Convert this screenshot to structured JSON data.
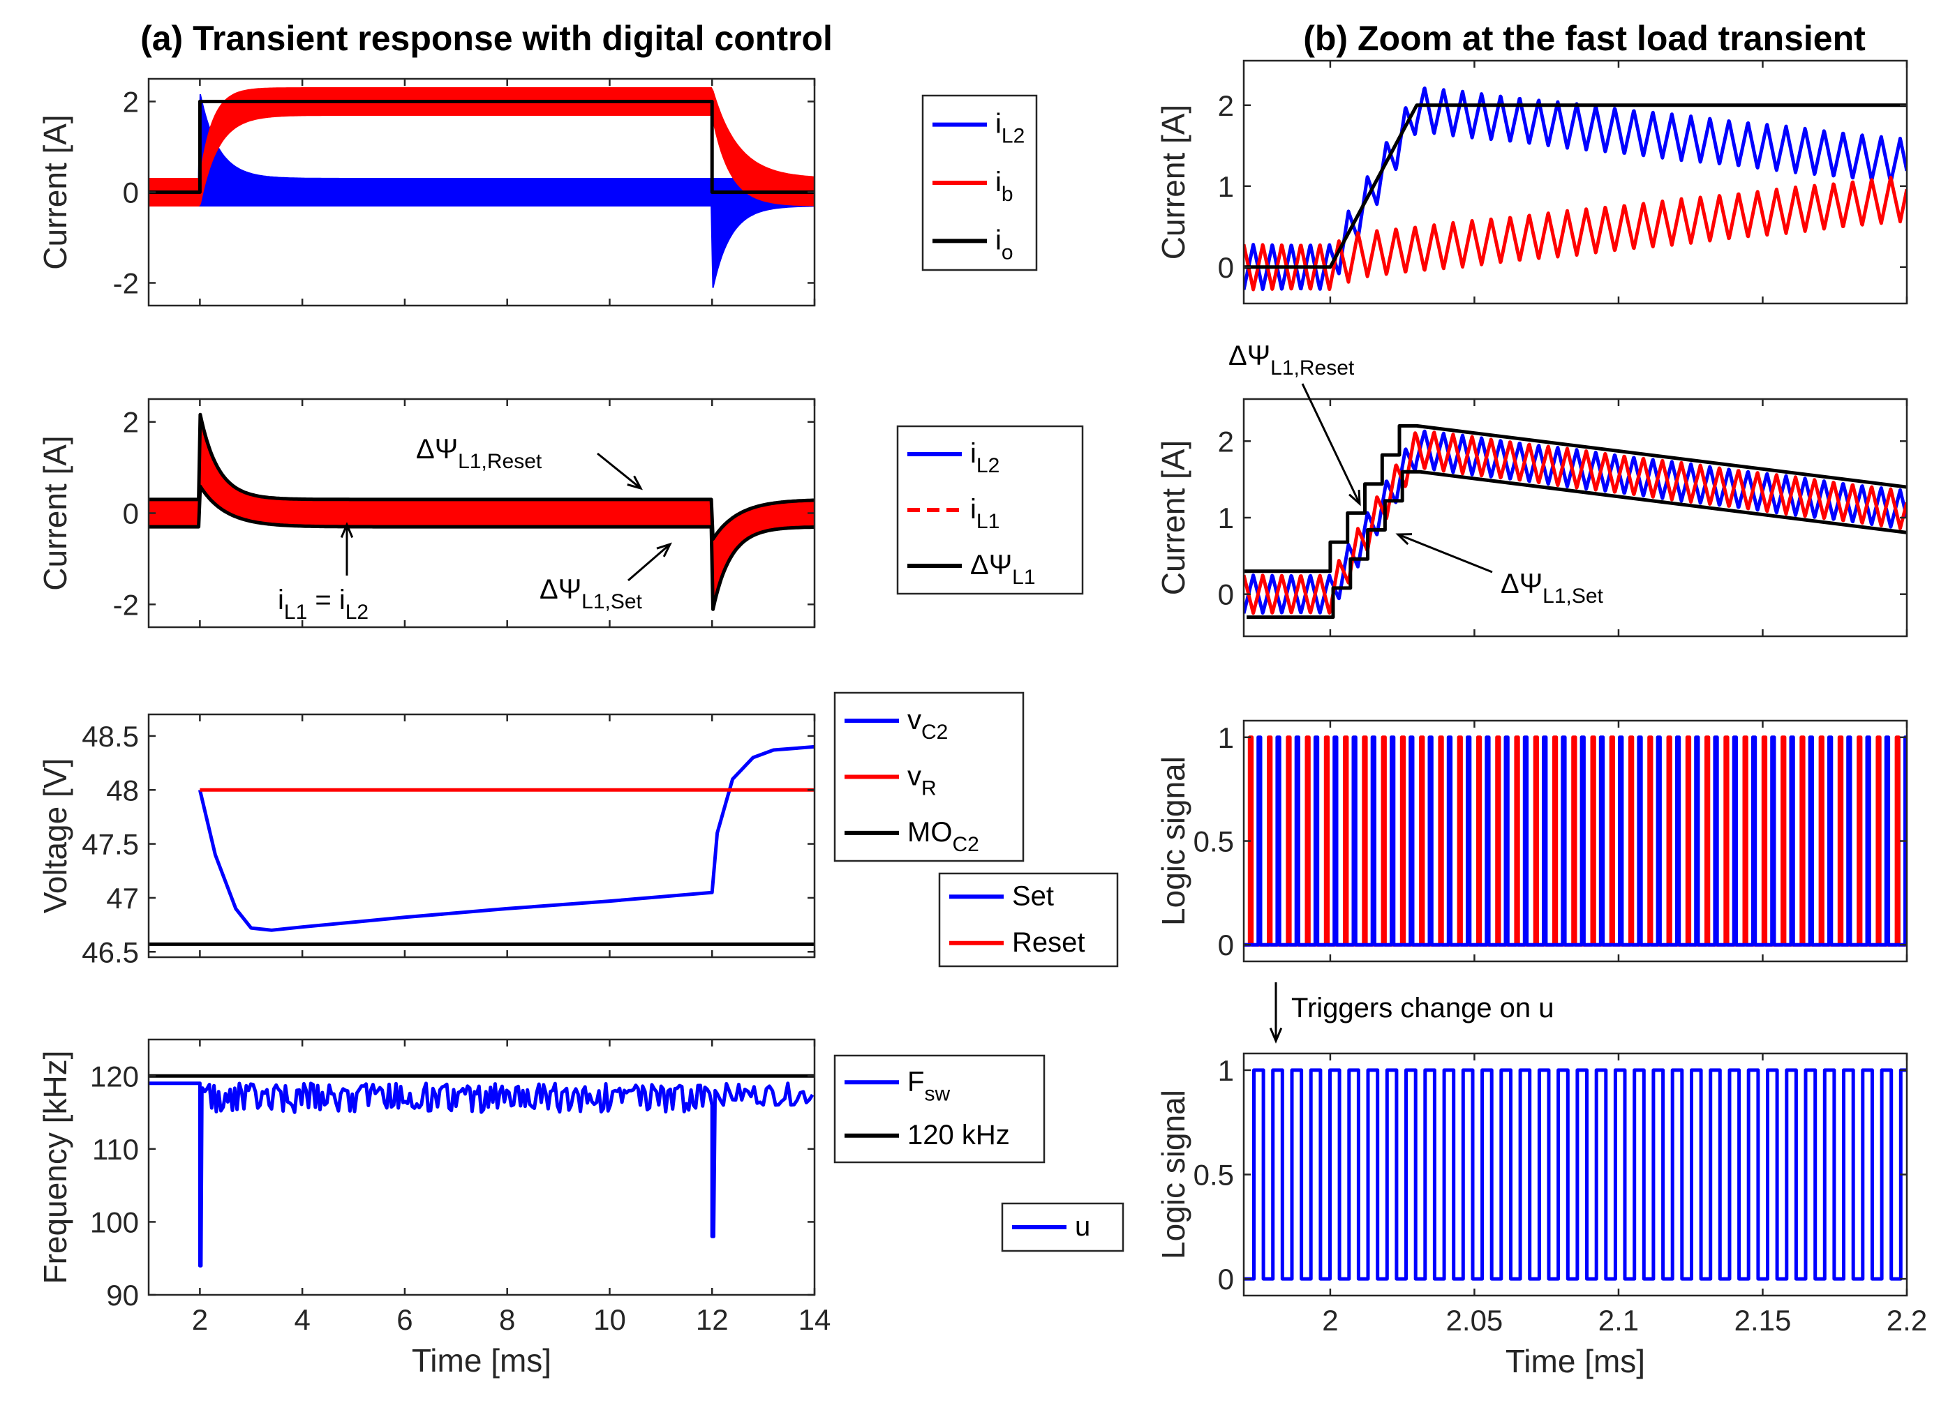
{
  "titles": {
    "left": "(a) Transient response with digital control",
    "right": "(b) Zoom at the fast load transient"
  },
  "colors": {
    "blue": "#0000ff",
    "red": "#ff0000",
    "black": "#000000",
    "axis": "#262626"
  },
  "chart_data": [
    {
      "id": "a1",
      "type": "line",
      "ylabel": "Current [A]",
      "xlim": [
        1,
        14
      ],
      "ylim": [
        -2.5,
        2.5
      ],
      "yticks": [
        -2,
        0,
        2
      ],
      "ytick_labels": [
        "-2",
        "0",
        "2"
      ],
      "xticks": [
        2,
        4,
        6,
        8,
        10,
        12,
        14
      ],
      "show_xtick_labels": false,
      "series": [
        {
          "name": "i_L2",
          "color": "#0000ff",
          "desc": "ripple band ~±0.3 A, +2.2 A spike at 2 ms, -2.2 A spike at 12 ms"
        },
        {
          "name": "i_b",
          "color": "#ff0000",
          "desc": "ripple band rising to ~2 A between 2 and 12 ms"
        },
        {
          "name": "i_o",
          "color": "#000000",
          "x": [
            1,
            2,
            2,
            12,
            12,
            14
          ],
          "y": [
            0,
            0,
            2,
            2,
            0,
            0
          ]
        }
      ],
      "legend": [
        {
          "label": "i",
          "sub": "L2",
          "color": "#0000ff",
          "dash": false
        },
        {
          "label": "i",
          "sub": "b",
          "color": "#ff0000",
          "dash": false
        },
        {
          "label": "i",
          "sub": "o",
          "color": "#000000",
          "dash": false
        }
      ]
    },
    {
      "id": "a2",
      "type": "line",
      "ylabel": "Current [A]",
      "xlim": [
        1,
        14
      ],
      "ylim": [
        -2.5,
        2.5
      ],
      "yticks": [
        -2,
        0,
        2
      ],
      "ytick_labels": [
        "-2",
        "0",
        "2"
      ],
      "xticks": [
        2,
        4,
        6,
        8,
        10,
        12,
        14
      ],
      "show_xtick_labels": false,
      "series": [
        {
          "name": "i_L2",
          "color": "#0000ff"
        },
        {
          "name": "i_L1",
          "color": "#ff0000"
        },
        {
          "name": "ΔΨ_L1",
          "color": "#000000",
          "desc": "envelope ±0.3 A with decaying spikes at 2 and 12 ms"
        }
      ],
      "legend": [
        {
          "label": "i",
          "sub": "L2",
          "color": "#0000ff",
          "dash": false
        },
        {
          "label": "i",
          "sub": "L1",
          "color": "#ff0000",
          "dash": true
        },
        {
          "label": "ΔΨ",
          "sub": "L1",
          "color": "#000000",
          "dash": false
        }
      ],
      "annotations": {
        "reset": {
          "main": "ΔΨ",
          "sub": "L1,Reset"
        },
        "set": {
          "main": "ΔΨ",
          "sub": "L1,Set"
        },
        "eq": {
          "a": "i",
          "a_sub": "L1",
          "mid": " = i",
          "b_sub": "L2"
        }
      }
    },
    {
      "id": "a3",
      "type": "line",
      "ylabel": "Voltage [V]",
      "xlim": [
        1,
        14
      ],
      "ylim": [
        46.45,
        48.7
      ],
      "yticks": [
        46.5,
        47,
        47.5,
        48,
        48.5
      ],
      "ytick_labels": [
        "46.5",
        "47",
        "47.5",
        "48",
        "48.5"
      ],
      "xticks": [
        2,
        4,
        6,
        8,
        10,
        12,
        14
      ],
      "show_xtick_labels": false,
      "series": [
        {
          "name": "v_C2",
          "color": "#0000ff",
          "x": [
            2,
            2.3,
            2.7,
            3.0,
            3.4,
            4,
            6,
            8,
            10,
            12,
            12.1,
            12.4,
            12.8,
            13.2,
            14
          ],
          "y": [
            48.0,
            47.4,
            46.9,
            46.72,
            46.7,
            46.73,
            46.82,
            46.9,
            46.97,
            47.05,
            47.6,
            48.1,
            48.3,
            48.37,
            48.4
          ]
        },
        {
          "name": "v_R",
          "color": "#ff0000",
          "x": [
            2,
            14
          ],
          "y": [
            48,
            48
          ]
        },
        {
          "name": "MO_C2",
          "color": "#000000",
          "x": [
            1,
            14
          ],
          "y": [
            46.57,
            46.57
          ]
        }
      ],
      "legend": [
        {
          "label": "v",
          "sub": "C2",
          "color": "#0000ff",
          "dash": false
        },
        {
          "label": "v",
          "sub": "R",
          "color": "#ff0000",
          "dash": false
        },
        {
          "label": "MO",
          "sub": "C2",
          "color": "#000000",
          "dash": false
        }
      ]
    },
    {
      "id": "a4",
      "type": "line",
      "ylabel": "Frequency [kHz]",
      "xlabel": "Time [ms]",
      "xlim": [
        1,
        14
      ],
      "ylim": [
        90,
        125
      ],
      "yticks": [
        90,
        100,
        110,
        120
      ],
      "ytick_labels": [
        "90",
        "100",
        "110",
        "120"
      ],
      "xticks": [
        2,
        4,
        6,
        8,
        10,
        12,
        14
      ],
      "xtick_labels": [
        "2",
        "4",
        "6",
        "8",
        "10",
        "12",
        "14"
      ],
      "show_xtick_labels": true,
      "series": [
        {
          "name": "F_sw",
          "color": "#0000ff",
          "desc": "~115-119 kHz with dips to 94 kHz at 2 ms and 98 kHz at 12 ms"
        },
        {
          "name": "120 kHz",
          "color": "#000000",
          "x": [
            1,
            14
          ],
          "y": [
            120,
            120
          ]
        }
      ],
      "legend": [
        {
          "label": "F",
          "sub": "sw",
          "color": "#0000ff",
          "dash": false
        },
        {
          "label": "120 kHz",
          "sub": "",
          "color": "#000000",
          "dash": false
        }
      ]
    },
    {
      "id": "b1",
      "type": "line",
      "ylabel": "Current [A]",
      "xlim": [
        1.97,
        2.2
      ],
      "ylim": [
        -0.45,
        2.55
      ],
      "yticks": [
        0,
        1,
        2
      ],
      "ytick_labels": [
        "0",
        "1",
        "2"
      ],
      "xticks": [
        2,
        2.05,
        2.1,
        2.15,
        2.2
      ],
      "show_xtick_labels": false,
      "series": [
        {
          "name": "i_L2",
          "color": "#0000ff"
        },
        {
          "name": "i_b",
          "color": "#ff0000"
        },
        {
          "name": "i_o",
          "color": "#000000",
          "x": [
            1.97,
            2.0,
            2.03,
            2.2
          ],
          "y": [
            0,
            0,
            2,
            2
          ]
        }
      ]
    },
    {
      "id": "b2",
      "type": "line",
      "ylabel": "Current [A]",
      "xlim": [
        1.97,
        2.2
      ],
      "ylim": [
        -0.55,
        2.55
      ],
      "yticks": [
        0,
        1,
        2
      ],
      "ytick_labels": [
        "0",
        "1",
        "2"
      ],
      "xticks": [
        2,
        2.05,
        2.1,
        2.15,
        2.2
      ],
      "show_xtick_labels": false,
      "series": [
        {
          "name": "i_L2",
          "color": "#0000ff"
        },
        {
          "name": "i_L1",
          "color": "#ff0000"
        },
        {
          "name": "ΔΨ_L1",
          "color": "#000000"
        }
      ],
      "annotations": {
        "reset": {
          "main": "ΔΨ",
          "sub": "L1,Reset"
        },
        "set": {
          "main": "ΔΨ",
          "sub": "L1,Set"
        }
      }
    },
    {
      "id": "b3",
      "type": "line",
      "ylabel": "Logic signal",
      "xlim": [
        1.97,
        2.2
      ],
      "ylim": [
        -0.08,
        1.08
      ],
      "yticks": [
        0,
        0.5,
        1
      ],
      "ytick_labels": [
        "0",
        "0.5",
        "1"
      ],
      "xticks": [
        2,
        2.05,
        2.1,
        2.15,
        2.2
      ],
      "show_xtick_labels": false,
      "series": [
        {
          "name": "Set",
          "color": "#0000ff"
        },
        {
          "name": "Reset",
          "color": "#ff0000"
        }
      ],
      "legend": [
        {
          "label": "Set",
          "sub": "",
          "color": "#0000ff",
          "dash": false
        },
        {
          "label": "Reset",
          "sub": "",
          "color": "#ff0000",
          "dash": false
        }
      ],
      "annotation": "Triggers change on u"
    },
    {
      "id": "b4",
      "type": "line",
      "ylabel": "Logic signal",
      "xlabel": "Time [ms]",
      "xlim": [
        1.97,
        2.2
      ],
      "ylim": [
        -0.08,
        1.08
      ],
      "yticks": [
        0,
        0.5,
        1
      ],
      "ytick_labels": [
        "0",
        "0.5",
        "1"
      ],
      "xticks": [
        2,
        2.05,
        2.1,
        2.15,
        2.2
      ],
      "xtick_labels": [
        "2",
        "2.05",
        "2.1",
        "2.15",
        "2.2"
      ],
      "show_xtick_labels": true,
      "series": [
        {
          "name": "u",
          "color": "#0000ff"
        }
      ],
      "legend": [
        {
          "label": "u",
          "sub": "",
          "color": "#0000ff",
          "dash": false
        }
      ]
    }
  ]
}
